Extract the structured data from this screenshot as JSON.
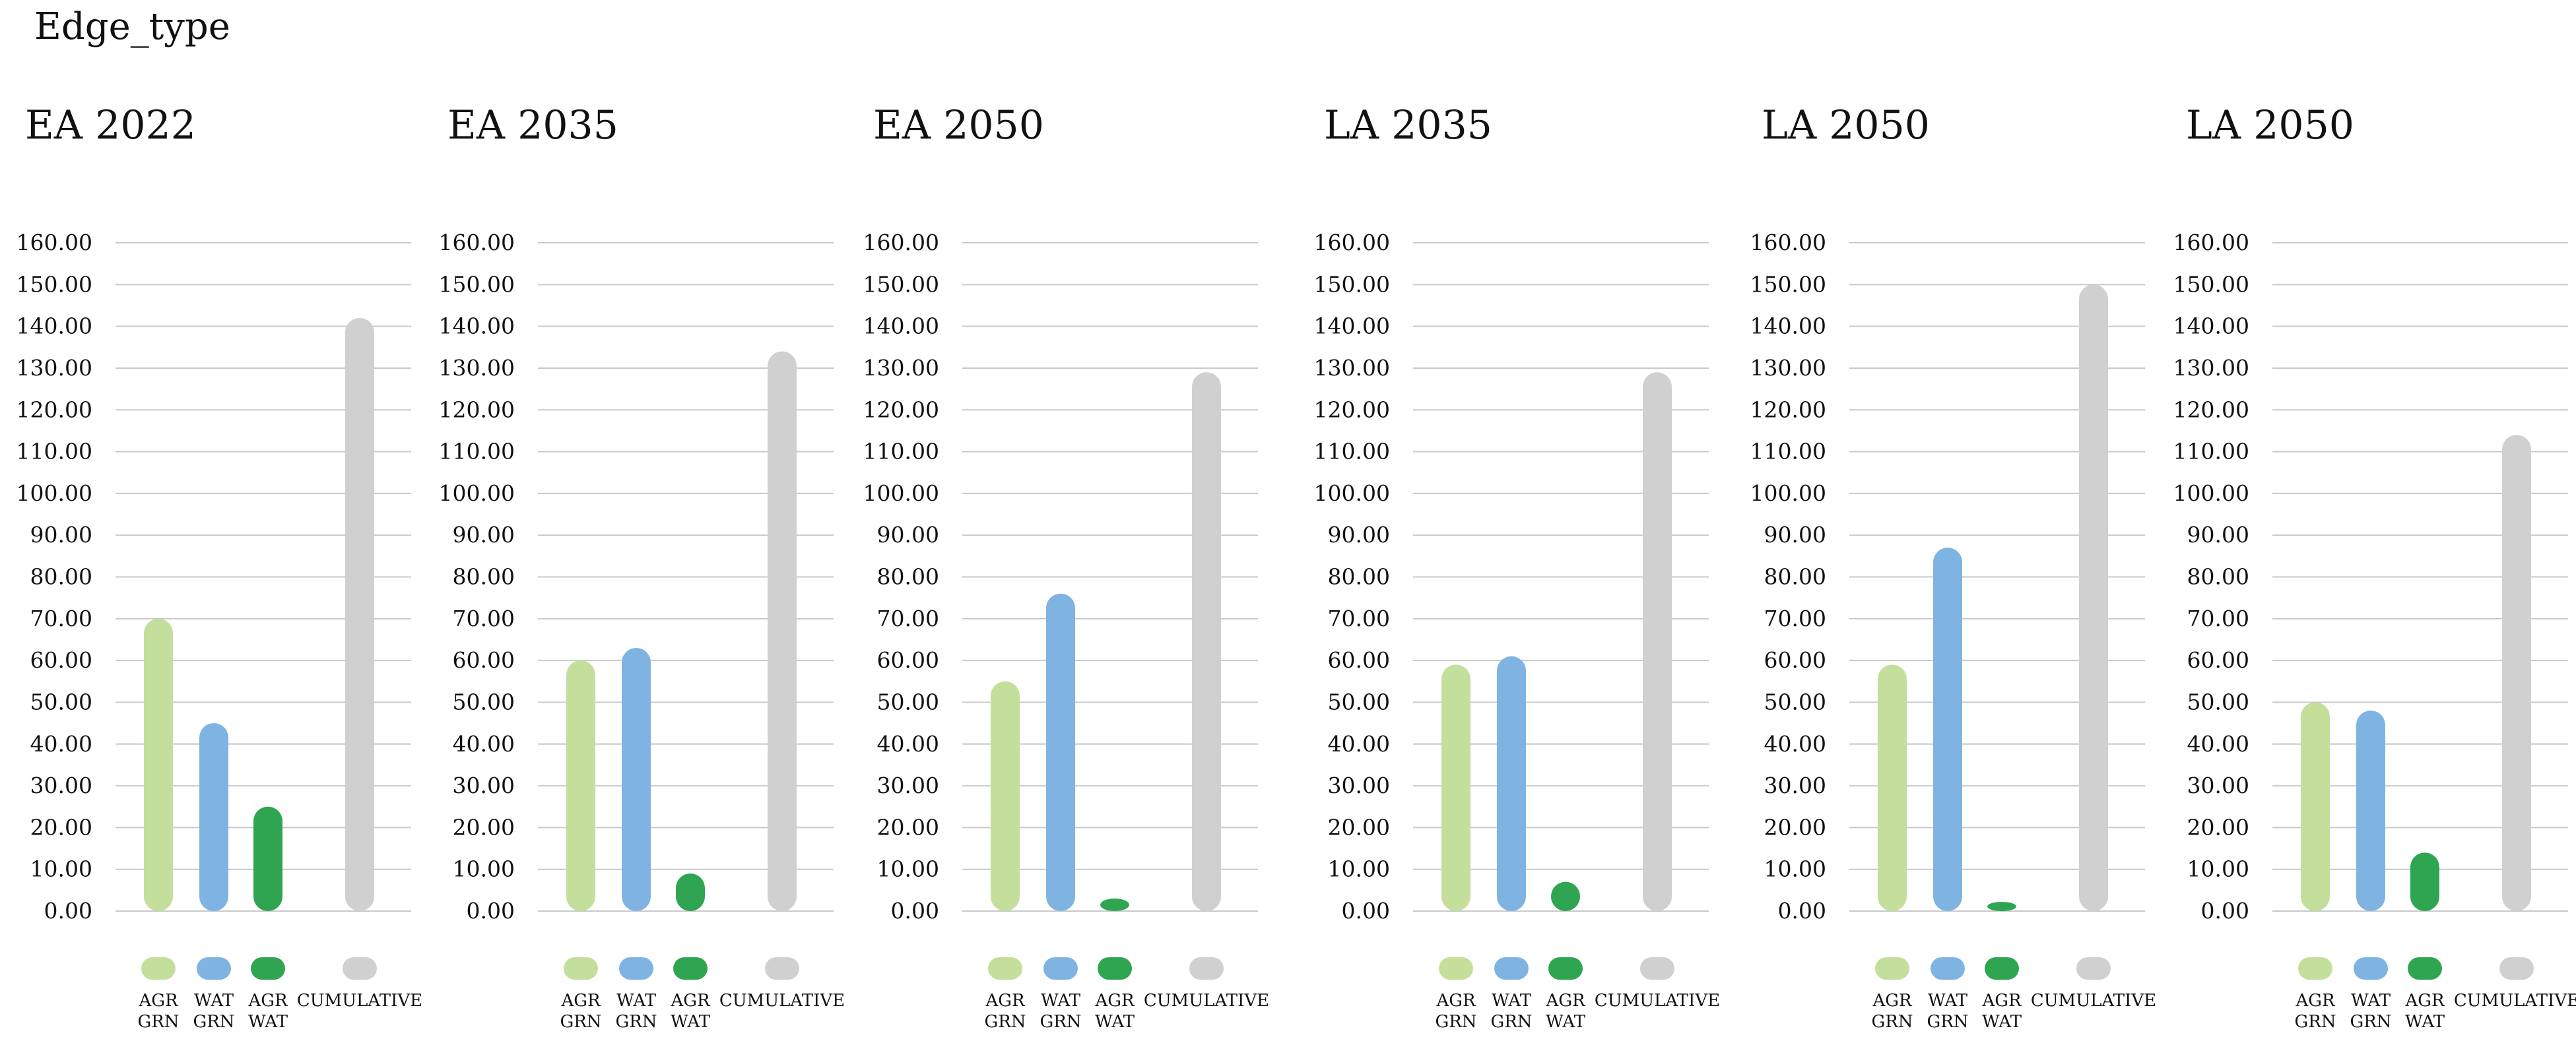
{
  "page_title": "Edge_type",
  "chart_data": [
    {
      "type": "bar",
      "title": "EA 2022",
      "categories": [
        "AGR GRN",
        "WAT GRN",
        "AGR WAT",
        "CUMULATIVE"
      ],
      "values": [
        70,
        45,
        25,
        142
      ],
      "ylim": [
        0,
        160
      ],
      "yticks": [
        "0.00",
        "10.00",
        "20.00",
        "30.00",
        "40.00",
        "50.00",
        "60.00",
        "70.00",
        "80.00",
        "90.00",
        "100.00",
        "110.00",
        "120.00",
        "130.00",
        "140.00",
        "150.00",
        "160.00"
      ],
      "grid": true,
      "legend": [
        {
          "lines": [
            "AGR",
            "GRN"
          ],
          "color": "#c3df9b"
        },
        {
          "lines": [
            "WAT",
            "GRN"
          ],
          "color": "#7fb4e2"
        },
        {
          "lines": [
            "AGR",
            "WAT"
          ],
          "color": "#2fa552"
        },
        {
          "lines": [
            "CUMULATIVE"
          ],
          "color": "#d0d0d1"
        }
      ]
    },
    {
      "type": "bar",
      "title": "EA 2035",
      "categories": [
        "AGR GRN",
        "WAT GRN",
        "AGR WAT",
        "CUMULATIVE"
      ],
      "values": [
        60,
        63,
        9,
        134
      ],
      "ylim": [
        0,
        160
      ],
      "yticks": [
        "0.00",
        "10.00",
        "20.00",
        "30.00",
        "40.00",
        "50.00",
        "60.00",
        "70.00",
        "80.00",
        "90.00",
        "100.00",
        "110.00",
        "120.00",
        "130.00",
        "140.00",
        "150.00",
        "160.00"
      ],
      "grid": true,
      "legend": [
        {
          "lines": [
            "AGR",
            "GRN"
          ],
          "color": "#c3df9b"
        },
        {
          "lines": [
            "WAT",
            "GRN"
          ],
          "color": "#7fb4e2"
        },
        {
          "lines": [
            "AGR",
            "WAT"
          ],
          "color": "#2fa552"
        },
        {
          "lines": [
            "CUMULATIVE"
          ],
          "color": "#d0d0d1"
        }
      ]
    },
    {
      "type": "bar",
      "title": "EA 2050",
      "categories": [
        "AGR GRN",
        "WAT GRN",
        "AGR WAT",
        "CUMULATIVE"
      ],
      "values": [
        55,
        76,
        3,
        129
      ],
      "ylim": [
        0,
        160
      ],
      "yticks": [
        "0.00",
        "10.00",
        "20.00",
        "30.00",
        "40.00",
        "50.00",
        "60.00",
        "70.00",
        "80.00",
        "90.00",
        "100.00",
        "110.00",
        "120.00",
        "130.00",
        "140.00",
        "150.00",
        "160.00"
      ],
      "grid": true,
      "legend": [
        {
          "lines": [
            "AGR",
            "GRN"
          ],
          "color": "#c3df9b"
        },
        {
          "lines": [
            "WAT",
            "GRN"
          ],
          "color": "#7fb4e2"
        },
        {
          "lines": [
            "AGR",
            "WAT"
          ],
          "color": "#2fa552"
        },
        {
          "lines": [
            "CUMULATIVE"
          ],
          "color": "#d0d0d1"
        }
      ]
    },
    {
      "type": "bar",
      "title": "LA 2035",
      "categories": [
        "AGR GRN",
        "WAT GRN",
        "AGR WAT",
        "CUMULATIVE"
      ],
      "values": [
        59,
        61,
        7,
        129
      ],
      "ylim": [
        0,
        160
      ],
      "yticks": [
        "0.00",
        "10.00",
        "20.00",
        "30.00",
        "40.00",
        "50.00",
        "60.00",
        "70.00",
        "80.00",
        "90.00",
        "100.00",
        "110.00",
        "120.00",
        "130.00",
        "140.00",
        "150.00",
        "160.00"
      ],
      "grid": true,
      "legend": [
        {
          "lines": [
            "AGR",
            "GRN"
          ],
          "color": "#c3df9b"
        },
        {
          "lines": [
            "WAT",
            "GRN"
          ],
          "color": "#7fb4e2"
        },
        {
          "lines": [
            "AGR",
            "WAT"
          ],
          "color": "#2fa552"
        },
        {
          "lines": [
            "CUMULATIVE"
          ],
          "color": "#d0d0d1"
        }
      ]
    },
    {
      "type": "bar",
      "title": "LA 2050",
      "categories": [
        "AGR GRN",
        "WAT GRN",
        "AGR WAT",
        "CUMULATIVE"
      ],
      "values": [
        59,
        87,
        2,
        150
      ],
      "ylim": [
        0,
        160
      ],
      "yticks": [
        "0.00",
        "10.00",
        "20.00",
        "30.00",
        "40.00",
        "50.00",
        "60.00",
        "70.00",
        "80.00",
        "90.00",
        "100.00",
        "110.00",
        "120.00",
        "130.00",
        "140.00",
        "150.00",
        "160.00"
      ],
      "grid": true,
      "legend": [
        {
          "lines": [
            "AGR",
            "GRN"
          ],
          "color": "#c3df9b"
        },
        {
          "lines": [
            "WAT",
            "GRN"
          ],
          "color": "#7fb4e2"
        },
        {
          "lines": [
            "AGR",
            "WAT"
          ],
          "color": "#2fa552"
        },
        {
          "lines": [
            "CUMULATIVE"
          ],
          "color": "#d0d0d1"
        }
      ]
    },
    {
      "type": "bar",
      "title": "LA 2050",
      "categories": [
        "AGR GRN",
        "WAT GRN",
        "AGR WAT",
        "CUMULATIVE"
      ],
      "values": [
        50,
        48,
        14,
        114
      ],
      "ylim": [
        0,
        160
      ],
      "yticks": [
        "0.00",
        "10.00",
        "20.00",
        "30.00",
        "40.00",
        "50.00",
        "60.00",
        "70.00",
        "80.00",
        "90.00",
        "100.00",
        "110.00",
        "120.00",
        "130.00",
        "140.00",
        "150.00",
        "160.00"
      ],
      "grid": true,
      "legend": [
        {
          "lines": [
            "AGR",
            "GRN"
          ],
          "color": "#c3df9b"
        },
        {
          "lines": [
            "WAT",
            "GRN"
          ],
          "color": "#7fb4e2"
        },
        {
          "lines": [
            "AGR",
            "WAT"
          ],
          "color": "#2fa552"
        },
        {
          "lines": [
            "CUMULATIVE"
          ],
          "color": "#d0d0d1"
        }
      ]
    }
  ]
}
